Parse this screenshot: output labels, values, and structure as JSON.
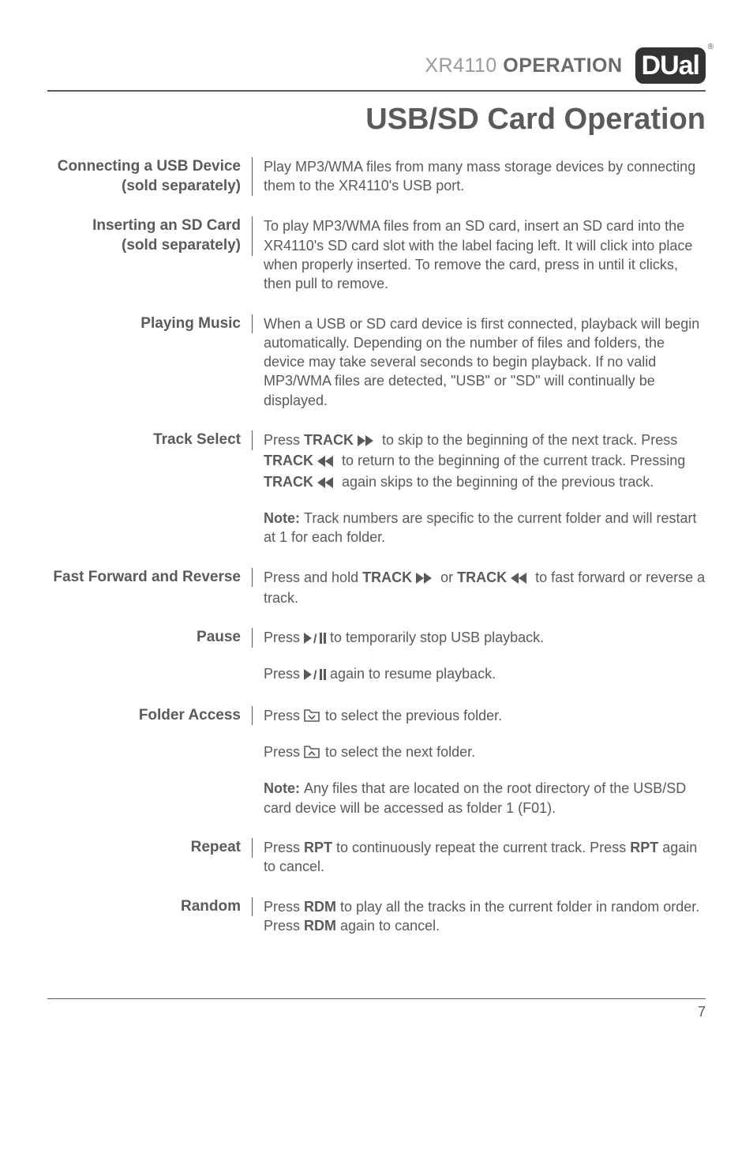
{
  "header": {
    "product": "XR4110",
    "section": "OPERATION",
    "logo_text": "DUal",
    "reg": "®"
  },
  "title": "USB/SD Card Operation",
  "rows": [
    {
      "label": "Connecting a USB Device\n(sold separately)",
      "paragraphs": [
        {
          "segments": [
            {
              "t": "Play MP3/WMA files from many mass storage devices by connecting them to the XR4110's USB port."
            }
          ]
        }
      ]
    },
    {
      "label": "Inserting an SD Card\n(sold separately)",
      "paragraphs": [
        {
          "segments": [
            {
              "t": "To play MP3/WMA files from an SD card, insert an SD card into the XR4110's SD card slot with the label facing left. It will click into place when properly inserted. To remove the card, press in until it clicks, then pull to remove."
            }
          ]
        }
      ]
    },
    {
      "label": "Playing Music",
      "paragraphs": [
        {
          "segments": [
            {
              "t": "When a USB or SD card device is first connected, playback will begin automatically. Depending on the number of files and folders, the device may take several seconds to begin playback. If no valid MP3/WMA files are detected, \"USB\" or \"SD\" will continually be displayed."
            }
          ]
        }
      ]
    },
    {
      "label": "Track Select",
      "paragraphs": [
        {
          "segments": [
            {
              "t": "Press "
            },
            {
              "t": "TRACK ",
              "b": true
            },
            {
              "icon": "ff"
            },
            {
              "t": " to skip to the beginning of the next track. Press "
            },
            {
              "t": "TRACK ",
              "b": true
            },
            {
              "icon": "rw"
            },
            {
              "t": " to return to the beginning of the current track. Pressing "
            },
            {
              "t": "TRACK ",
              "b": true
            },
            {
              "icon": "rw"
            },
            {
              "t": " again skips to the beginning of the previous track."
            }
          ]
        },
        {
          "segments": [
            {
              "t": "Note: ",
              "b": true
            },
            {
              "t": "Track numbers are specific to the current folder and will restart at 1 for each folder."
            }
          ]
        }
      ]
    },
    {
      "label": "Fast Forward and Reverse",
      "paragraphs": [
        {
          "segments": [
            {
              "t": "Press and hold "
            },
            {
              "t": "TRACK ",
              "b": true
            },
            {
              "icon": "ff"
            },
            {
              "t": " or "
            },
            {
              "t": "TRACK ",
              "b": true
            },
            {
              "icon": "rw"
            },
            {
              "t": " to fast forward or reverse a track."
            }
          ]
        }
      ]
    },
    {
      "label": "Pause",
      "paragraphs": [
        {
          "segments": [
            {
              "t": "Press "
            },
            {
              "icon": "playpause"
            },
            {
              "t": " to temporarily stop USB playback."
            }
          ]
        },
        {
          "segments": [
            {
              "t": "Press "
            },
            {
              "icon": "playpause"
            },
            {
              "t": " again to resume playback."
            }
          ]
        }
      ]
    },
    {
      "label": "Folder Access",
      "paragraphs": [
        {
          "segments": [
            {
              "t": "Press "
            },
            {
              "icon": "folder-down"
            },
            {
              "t": " to select the previous folder."
            }
          ]
        },
        {
          "segments": [
            {
              "t": "Press "
            },
            {
              "icon": "folder-up"
            },
            {
              "t": " to select the next folder."
            }
          ]
        },
        {
          "segments": [
            {
              "t": "Note: ",
              "b": true
            },
            {
              "t": "Any files that are located on the root directory of the USB/SD card device will be accessed as folder 1 (F01)."
            }
          ]
        }
      ]
    },
    {
      "label": "Repeat",
      "paragraphs": [
        {
          "segments": [
            {
              "t": "Press "
            },
            {
              "t": "RPT",
              "b": true
            },
            {
              "t": " to continuously repeat the current track. Press "
            },
            {
              "t": "RPT",
              "b": true
            },
            {
              "t": " again to cancel."
            }
          ]
        }
      ]
    },
    {
      "label": "Random",
      "paragraphs": [
        {
          "segments": [
            {
              "t": "Press "
            },
            {
              "t": "RDM",
              "b": true
            },
            {
              "t": " to play all the tracks in the current folder in random order. Press "
            },
            {
              "t": "RDM",
              "b": true
            },
            {
              "t": " again to cancel."
            }
          ]
        }
      ]
    }
  ],
  "icons": {
    "ff": "<svg width='26' height='14' viewBox='0 0 26 14'><polygon points='0,0 10,7 0,14' fill='#5a5a5a'/><polygon points='10,0 20,7 10,14' fill='#5a5a5a'/></svg>",
    "rw": "<svg width='26' height='14' viewBox='0 0 26 14'><polygon points='20,0 10,7 20,14' fill='#5a5a5a'/><polygon points='10,0 0,7 10,14' fill='#5a5a5a'/></svg>",
    "playpause": "<svg width='28' height='14' viewBox='0 0 28 14'><polygon points='0,0 10,7 0,14' fill='#5a5a5a'/><text x='12' y='13' font-size='16' font-weight='900' fill='#5a5a5a' font-family='Arial'>/</text><rect x='20' y='0' width='3' height='14' fill='#5a5a5a'/><rect x='25' y='0' width='3' height='14' fill='#5a5a5a'/></svg>",
    "folder-down": "<svg width='22' height='16' viewBox='0 0 22 16'><path d='M1 4 L1 15 L19 15 L19 4 L9 4 L7 1 L1 1 Z' fill='none' stroke='#5a5a5a' stroke-width='1.6'/><polyline points='6,8 10,12 14,8' fill='none' stroke='#5a5a5a' stroke-width='1.6'/></svg>",
    "folder-up": "<svg width='22' height='16' viewBox='0 0 22 16'><path d='M1 4 L1 15 L19 15 L19 4 L9 4 L7 1 L1 1 Z' fill='none' stroke='#5a5a5a' stroke-width='1.6'/><polyline points='6,12 10,8 14,12' fill='none' stroke='#5a5a5a' stroke-width='1.6'/></svg>"
  },
  "page_number": "7"
}
